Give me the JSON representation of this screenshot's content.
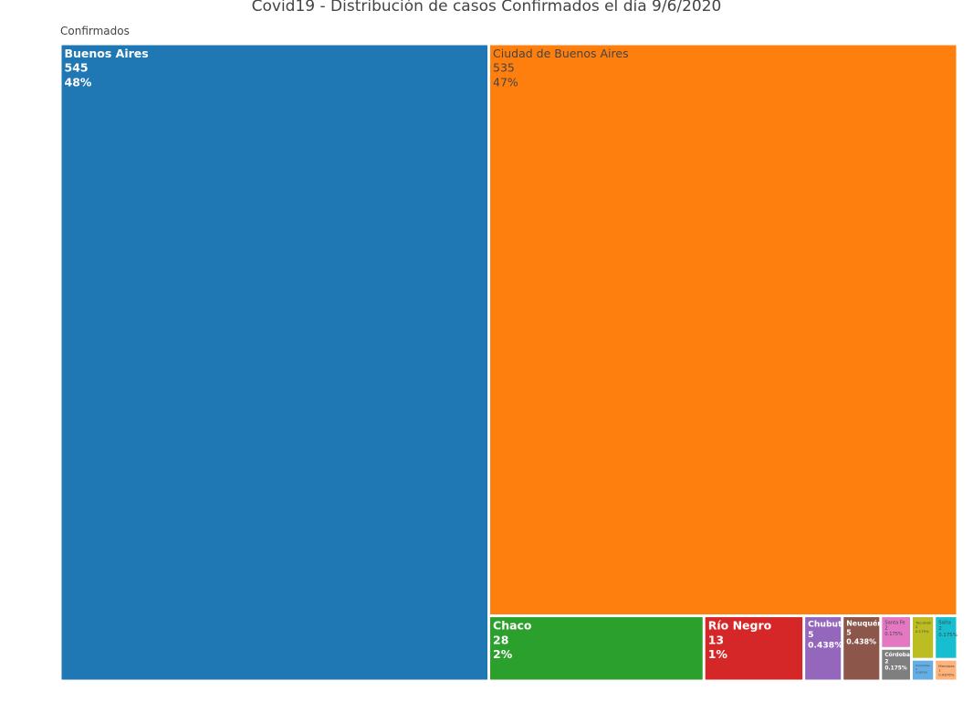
{
  "chart_data": {
    "type": "treemap",
    "title": "Covid19 - Distribución de casos Confirmados el día 9/6/2020",
    "root_label": "Confirmados",
    "categories": [
      "Buenos Aires",
      "Ciudad de Buenos Aires",
      "Chaco",
      "Río Negro",
      "Chubut",
      "Neuquén",
      "Santa Fe",
      "Córdoba",
      "Tucumán",
      "Salta",
      "Corrientes",
      "Mendoza"
    ],
    "values": [
      545,
      535,
      28,
      13,
      5,
      5,
      2,
      2,
      2,
      2,
      1,
      1
    ],
    "percent_labels": [
      "48%",
      "47%",
      "2%",
      "1%",
      "0.438%",
      "0.438%",
      "0.175%",
      "0.175%",
      "0.175%",
      "0.175%",
      "0.0876%",
      "0.0876%"
    ],
    "colors": [
      "#1f77b4",
      "#ff7f0e",
      "#2ca02c",
      "#d62728",
      "#9467bd",
      "#8c564b",
      "#e377c2",
      "#7f7f7f",
      "#bcbd22",
      "#17becf",
      "#65aee4",
      "#ffb27a"
    ]
  }
}
